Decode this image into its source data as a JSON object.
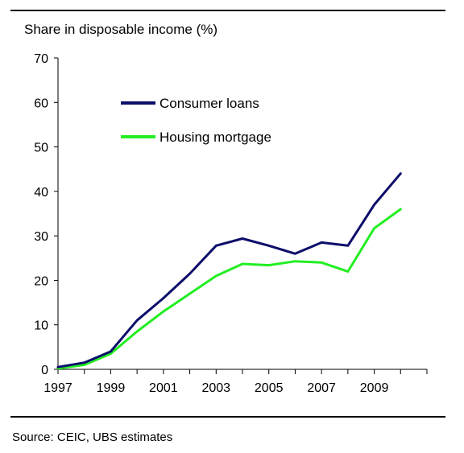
{
  "title": "Share in disposable income (%)",
  "source": "Source: CEIC, UBS estimates",
  "chart_data": {
    "type": "line",
    "title": "Share in disposable income (%)",
    "xlabel": "",
    "ylabel": "Share in disposable income (%)",
    "x": [
      1997,
      1998,
      1999,
      2000,
      2001,
      2002,
      2003,
      2004,
      2005,
      2006,
      2007,
      2008,
      2009,
      2010
    ],
    "xlim": [
      1997,
      2011
    ],
    "ylim": [
      0,
      70
    ],
    "x_ticks": [
      "1997",
      "1999",
      "2001",
      "2003",
      "2005",
      "2007",
      "2009"
    ],
    "x_tick_values": [
      1997,
      1999,
      2001,
      2003,
      2005,
      2007,
      2009
    ],
    "y_ticks": [
      0,
      10,
      20,
      30,
      40,
      50,
      60,
      70
    ],
    "grid": false,
    "legend_position": "top-left",
    "series": [
      {
        "name": "Consumer loans",
        "color": "#0d0d6b",
        "values": [
          0.5,
          1.5,
          4.0,
          11.0,
          16.0,
          21.5,
          27.8,
          29.4,
          27.8,
          26.0,
          28.5,
          27.8,
          37.0,
          44.0
        ]
      },
      {
        "name": "Housing mortgage",
        "color": "#22ee22",
        "values": [
          0.2,
          1.0,
          3.5,
          8.5,
          13.0,
          17.0,
          21.0,
          23.7,
          23.4,
          24.3,
          24.0,
          22.0,
          31.7,
          36.0
        ]
      }
    ]
  }
}
